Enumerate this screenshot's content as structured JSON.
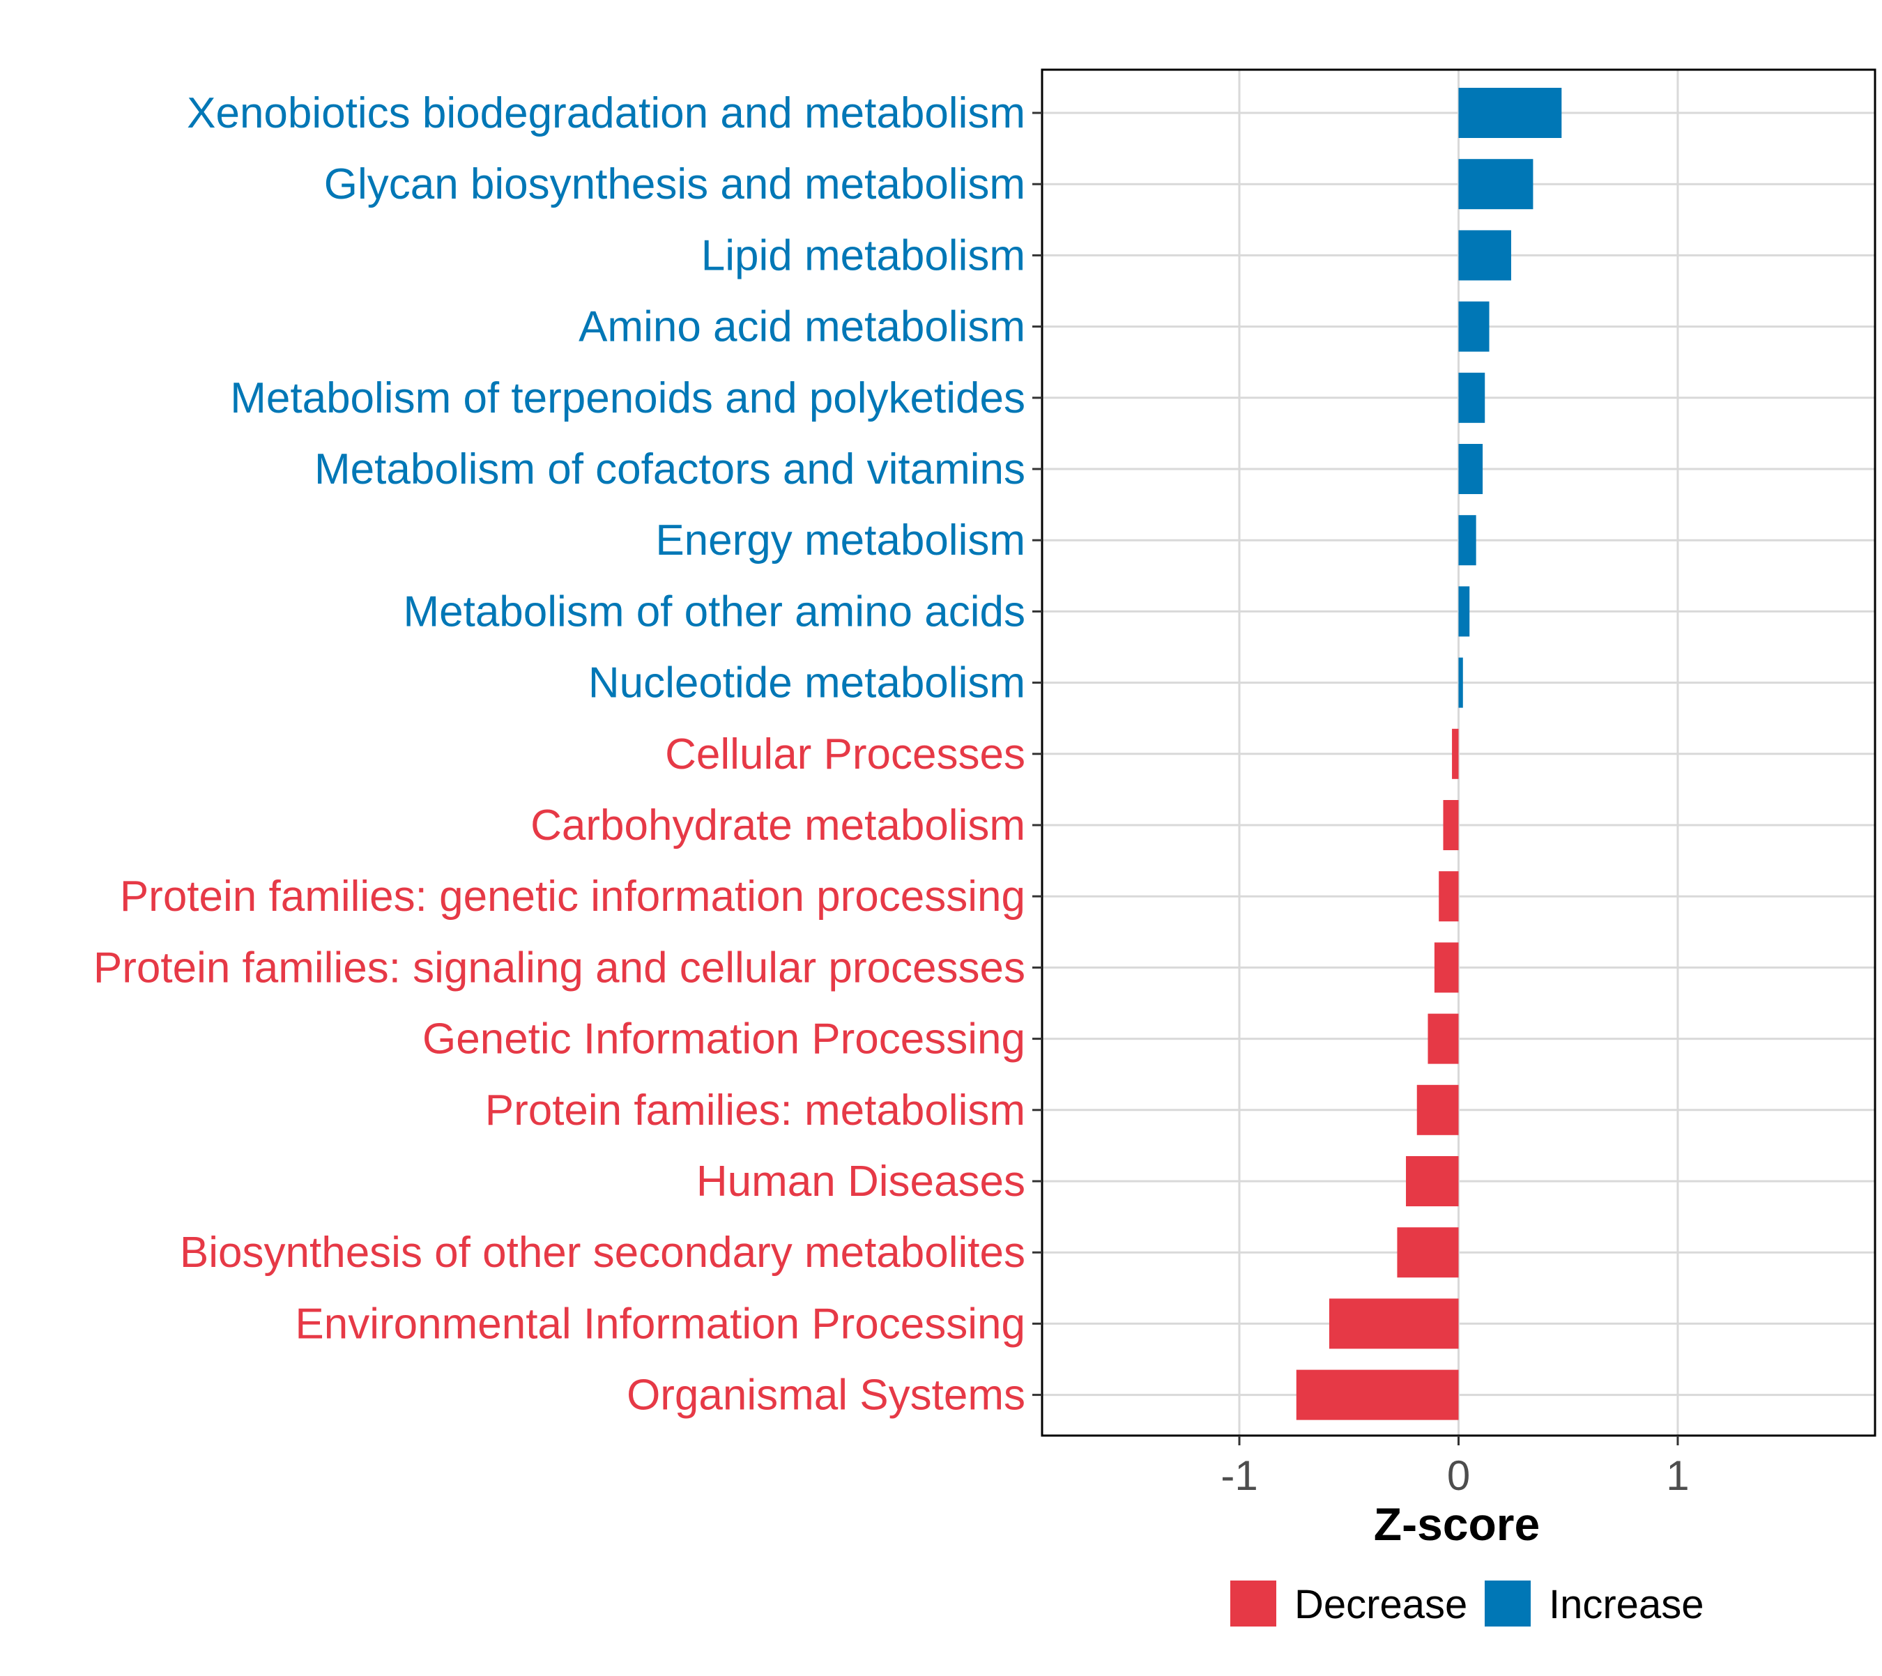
{
  "chart_data": {
    "type": "bar",
    "orientation": "horizontal",
    "title": "",
    "xlabel": "Z-score",
    "ylabel": "",
    "xlim": [
      -1.9,
      1.9
    ],
    "xticks": [
      -1,
      0,
      1
    ],
    "xtick_labels": [
      "-1",
      "0",
      "1"
    ],
    "grid": true,
    "categories": [
      "Xenobiotics biodegradation and metabolism",
      "Glycan biosynthesis and metabolism",
      "Lipid metabolism",
      "Amino acid metabolism",
      "Metabolism of terpenoids and polyketides",
      "Metabolism of cofactors and vitamins",
      "Energy metabolism",
      "Metabolism of other amino acids",
      "Nucleotide metabolism",
      "Cellular Processes",
      "Carbohydrate metabolism",
      "Protein families: genetic information processing",
      "Protein families: signaling and cellular processes",
      "Genetic Information Processing",
      "Protein families: metabolism",
      "Human Diseases",
      "Biosynthesis of other secondary metabolites",
      "Environmental Information Processing",
      "Organismal Systems"
    ],
    "values": [
      0.47,
      0.34,
      0.24,
      0.14,
      0.12,
      0.11,
      0.08,
      0.05,
      0.02,
      -0.03,
      -0.07,
      -0.09,
      -0.11,
      -0.14,
      -0.19,
      -0.24,
      -0.28,
      -0.59,
      -0.74
    ],
    "groups": [
      "Increase",
      "Increase",
      "Increase",
      "Increase",
      "Increase",
      "Increase",
      "Increase",
      "Increase",
      "Increase",
      "Decrease",
      "Decrease",
      "Decrease",
      "Decrease",
      "Decrease",
      "Decrease",
      "Decrease",
      "Decrease",
      "Decrease",
      "Decrease"
    ],
    "legend": {
      "position": "bottom",
      "entries": [
        {
          "name": "Decrease",
          "color": "#E63946"
        },
        {
          "name": "Increase",
          "color": "#0077B6"
        }
      ]
    },
    "colors": {
      "Decrease": "#E63946",
      "Increase": "#0077B6"
    }
  }
}
